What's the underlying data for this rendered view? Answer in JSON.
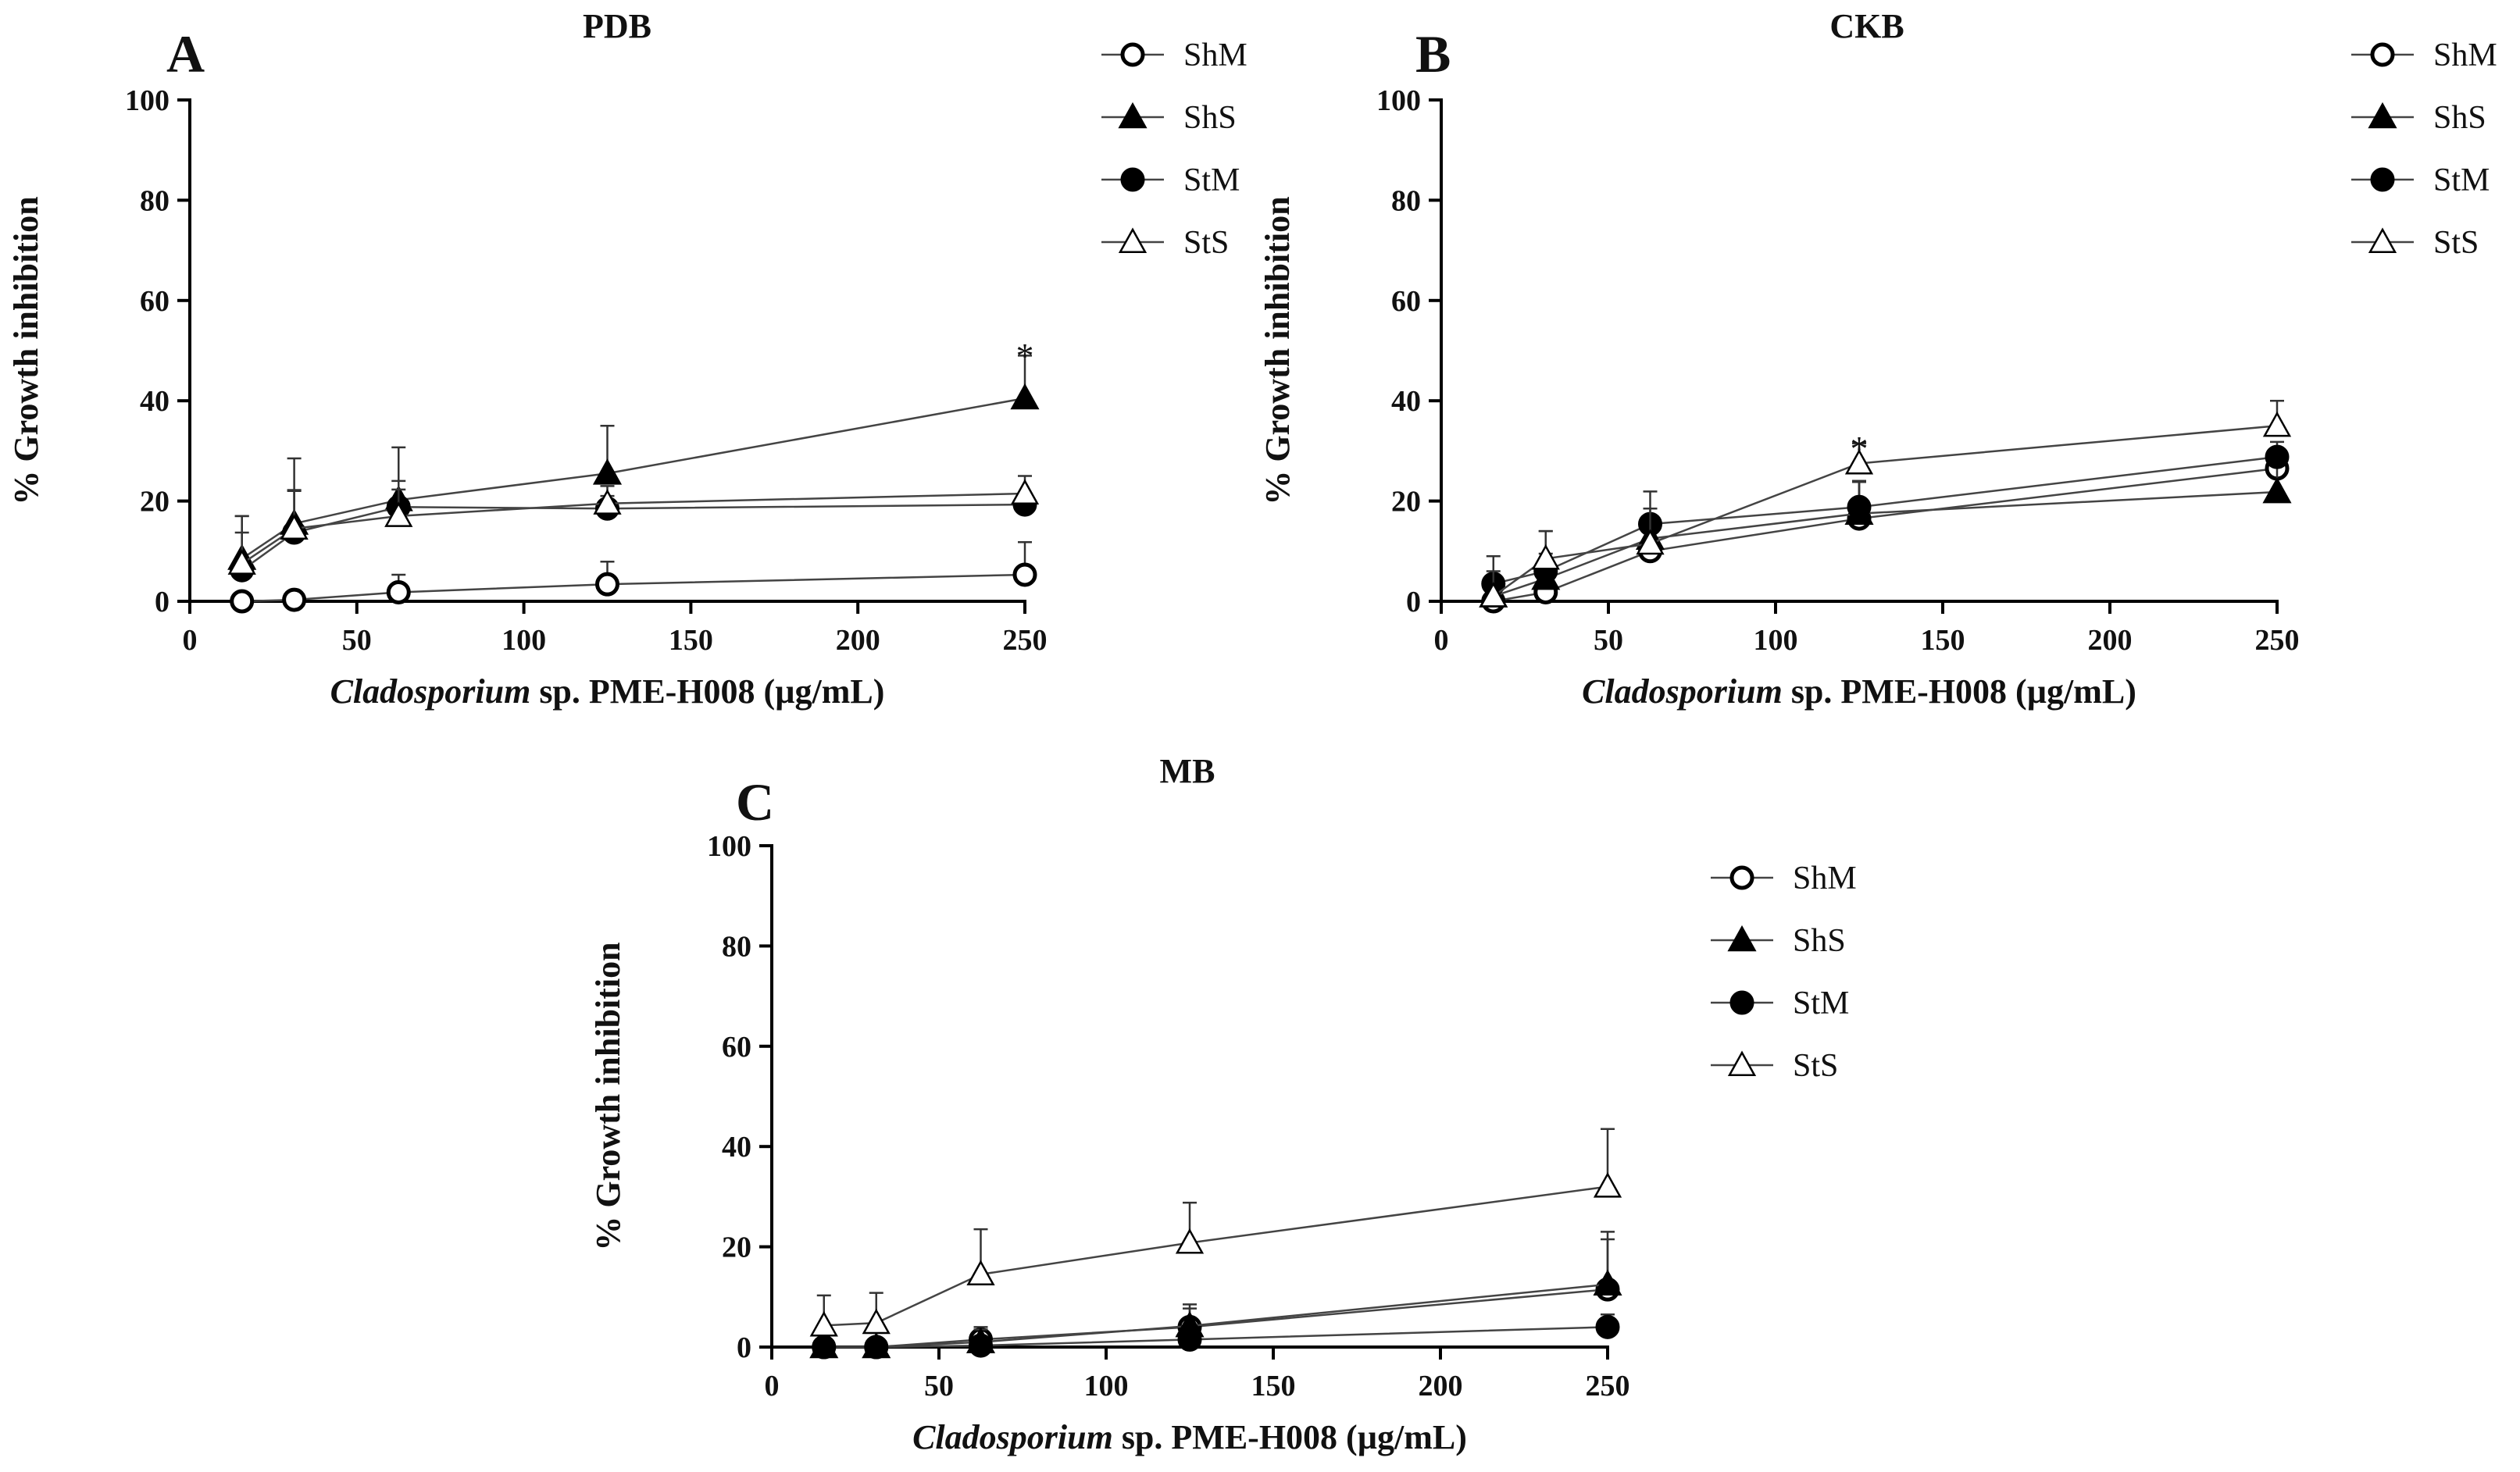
{
  "chart_data": [
    {
      "type": "line",
      "panel": "A",
      "title": "PDB",
      "xlabel_italic": "Cladosporium",
      "xlabel_rest": " sp. PME-H008 (µg/mL)",
      "ylabel": "% Growth inhibition",
      "xlim": [
        0,
        250
      ],
      "ylim": [
        0,
        100
      ],
      "xticks": [
        0,
        50,
        100,
        150,
        200,
        250
      ],
      "yticks": [
        0,
        20,
        40,
        60,
        80,
        100
      ],
      "x": [
        15.6,
        31.25,
        62.5,
        125,
        250
      ],
      "legend_position": "top-right",
      "series": [
        {
          "name": "ShM",
          "marker": "open-circle",
          "values": [
            0,
            0.3,
            1.8,
            3.4,
            5.3
          ],
          "error": [
            0,
            0,
            3.5,
            4.5,
            6.5
          ]
        },
        {
          "name": "ShS",
          "marker": "filled-triangle",
          "values": [
            8.5,
            15.5,
            20.2,
            25.5,
            40.5
          ],
          "error": [
            8.5,
            13,
            10.5,
            9.5,
            8.5
          ]
        },
        {
          "name": "StM",
          "marker": "filled-circle",
          "values": [
            6.2,
            13.7,
            18.8,
            18.5,
            19.3
          ],
          "error": [
            7.5,
            8.5,
            3.5,
            2.5,
            1.5
          ]
        },
        {
          "name": "StS",
          "marker": "open-triangle",
          "values": [
            7.5,
            14.5,
            17.0,
            19.5,
            21.5
          ],
          "error": [
            9.5,
            7.5,
            7,
            3.5,
            3.5
          ]
        }
      ],
      "annotations": [
        {
          "text": "*",
          "x": 250,
          "y": 50
        }
      ]
    },
    {
      "type": "line",
      "panel": "B",
      "title": "CKB",
      "xlabel_italic": "Cladosporium",
      "xlabel_rest": " sp. PME-H008 (µg/mL)",
      "ylabel": "% Growth inhibition",
      "xlim": [
        0,
        250
      ],
      "ylim": [
        0,
        100
      ],
      "xticks": [
        0,
        50,
        100,
        150,
        200,
        250
      ],
      "yticks": [
        0,
        20,
        40,
        60,
        80,
        100
      ],
      "x": [
        15.6,
        31.25,
        62.5,
        125,
        250
      ],
      "legend_position": "top-right",
      "series": [
        {
          "name": "ShM",
          "marker": "open-circle",
          "values": [
            0,
            1.8,
            10,
            16.5,
            26.5
          ],
          "error": [
            1.5,
            3,
            6.5,
            7.5,
            2.5
          ]
        },
        {
          "name": "ShS",
          "marker": "filled-triangle",
          "values": [
            1.0,
            4.5,
            12.5,
            17.5,
            21.8
          ],
          "error": [
            3,
            5,
            4.5,
            6.5,
            5.5
          ]
        },
        {
          "name": "StM",
          "marker": "filled-circle",
          "values": [
            3.5,
            6.0,
            15.4,
            18.8,
            28.8
          ],
          "error": [
            5.5,
            8,
            6.5,
            5,
            3
          ]
        },
        {
          "name": "StS",
          "marker": "open-triangle",
          "values": [
            1.0,
            8.5,
            11.5,
            27.5,
            35.0
          ],
          "error": [
            5,
            5.5,
            7,
            4,
            5
          ]
        }
      ],
      "annotations": [
        {
          "text": "*",
          "x": 125,
          "y": 31.5
        }
      ]
    },
    {
      "type": "line",
      "panel": "C",
      "title": "MB",
      "xlabel_italic": "Cladosporium",
      "xlabel_rest": " sp. PME-H008 (µg/mL)",
      "ylabel": "% Growth inhibition",
      "xlim": [
        0,
        250
      ],
      "ylim": [
        0,
        100
      ],
      "xticks": [
        0,
        50,
        100,
        150,
        200,
        250
      ],
      "yticks": [
        0,
        20,
        40,
        60,
        80,
        100
      ],
      "x": [
        15.6,
        31.25,
        62.5,
        125,
        250
      ],
      "legend_position": "right",
      "series": [
        {
          "name": "ShM",
          "marker": "open-circle",
          "values": [
            0,
            0,
            1.5,
            4.0,
            11.5
          ],
          "error": [
            1.5,
            1.5,
            2.5,
            4.5,
            11.5
          ]
        },
        {
          "name": "ShS",
          "marker": "filled-triangle",
          "values": [
            0,
            0,
            1.0,
            4.2,
            12.5
          ],
          "error": [
            1,
            1,
            2.5,
            3.5,
            9
          ]
        },
        {
          "name": "StM",
          "marker": "filled-circle",
          "values": [
            0,
            0,
            0.3,
            1.5,
            4.0
          ],
          "error": [
            1,
            1,
            1,
            1.5,
            2.5
          ]
        },
        {
          "name": "StS",
          "marker": "open-triangle",
          "values": [
            4.3,
            4.8,
            14.5,
            20.8,
            32.0
          ],
          "error": [
            6,
            6,
            9,
            8,
            11.5
          ]
        }
      ],
      "annotations": []
    }
  ]
}
